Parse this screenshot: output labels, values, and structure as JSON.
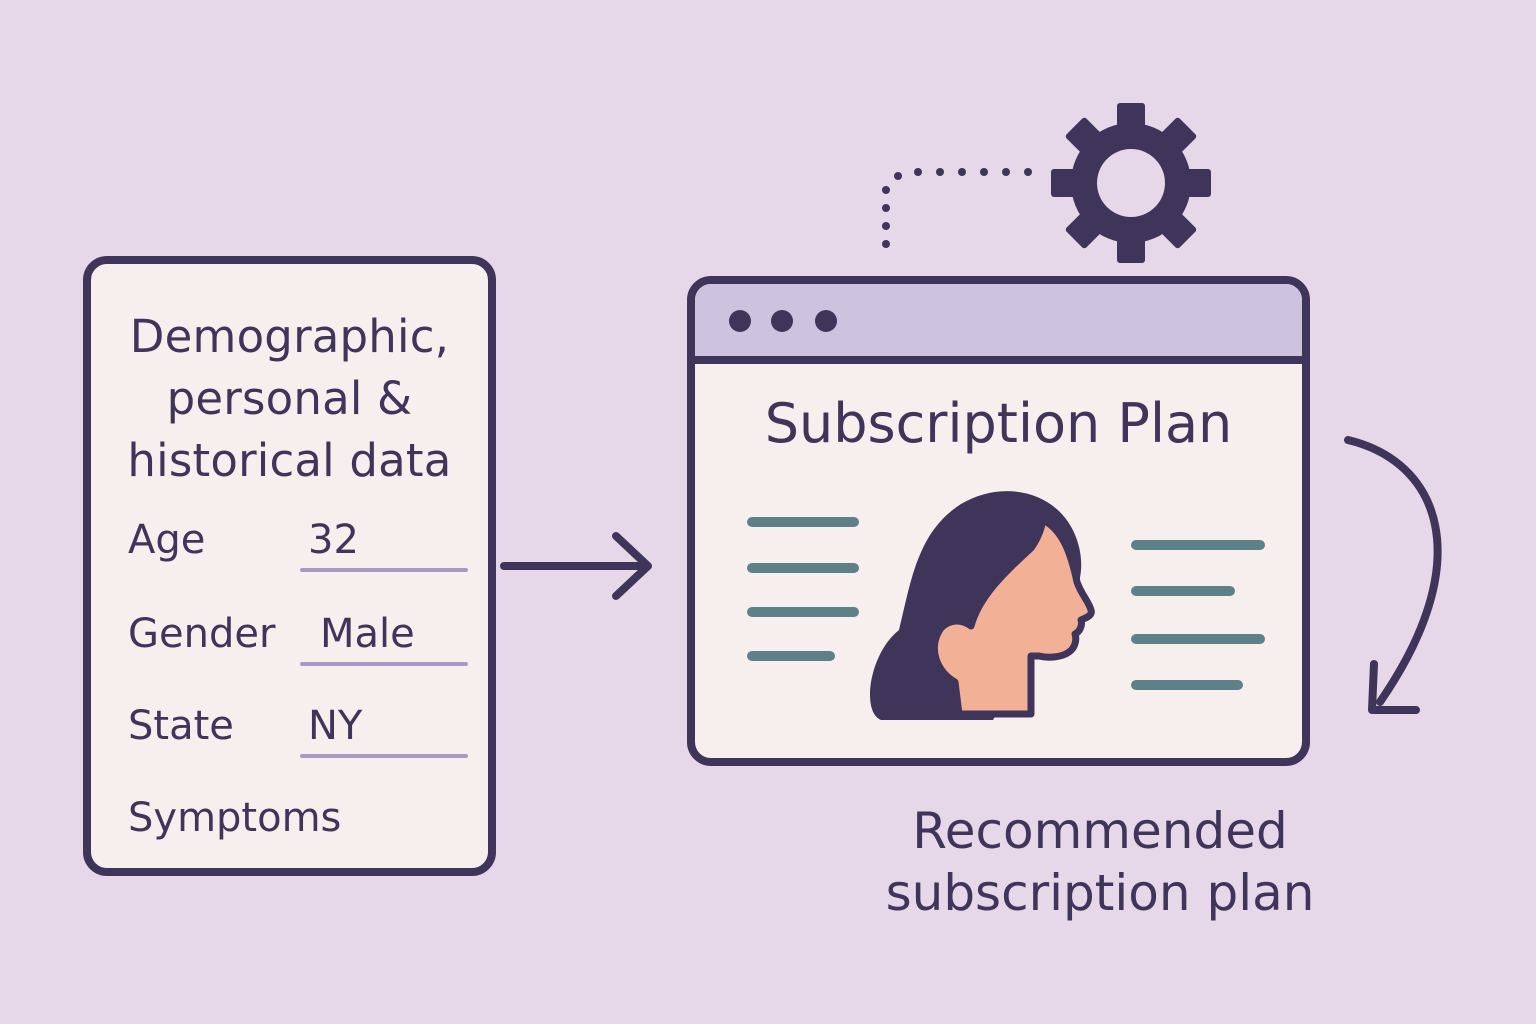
{
  "input_card": {
    "title_lines": [
      "Demographic,",
      "personal &",
      "historical data"
    ],
    "fields": [
      {
        "label": "Age",
        "value": "32"
      },
      {
        "label": "Gender",
        "value": "Male"
      },
      {
        "label": "State",
        "value": "NY"
      },
      {
        "label": "Symptoms",
        "value": ""
      }
    ]
  },
  "output_window": {
    "title": "Subscription Plan"
  },
  "caption": {
    "lines": [
      "Recommended",
      "subscription plan"
    ]
  },
  "icons": [
    "arrow-right-icon",
    "gear-icon",
    "dotted-connector",
    "curved-arrow-icon",
    "person-profile-icon",
    "browser-dot-icon"
  ],
  "colors": {
    "background": "#e6d8e9",
    "ink": "#3f3459",
    "card_fill": "#f7efed",
    "browser_bar": "#cdc3de",
    "field_underline": "#a99ac3",
    "text_lines": "#5e8189",
    "skin": "#f2b196"
  }
}
